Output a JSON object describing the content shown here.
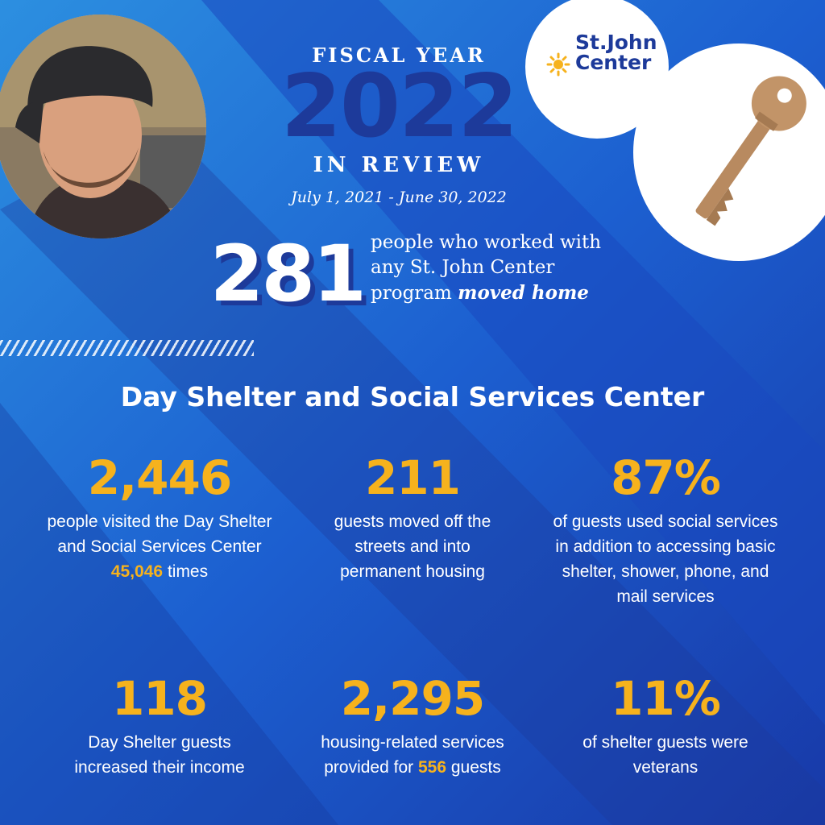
{
  "header": {
    "fiscal_year_label": "FISCAL YEAR",
    "year": "2022",
    "in_review": "IN REVIEW",
    "date_range": "July 1, 2021 - June 30, 2022"
  },
  "logo": {
    "line1": "St.John",
    "line2": "Center"
  },
  "highlight": {
    "number": "281",
    "text_line1": "people who worked with",
    "text_line2": "any St. John Center",
    "text_line3_plain": "program",
    "text_line3_emph": "moved home"
  },
  "section_title": "Day Shelter and Social Services Center",
  "stats": [
    {
      "number": "2,446",
      "desc_before": "people visited the Day Shelter and Social Services Center",
      "desc_highlight": "45,046",
      "desc_after": "times"
    },
    {
      "number": "211",
      "desc": "guests moved off the streets and into permanent housing"
    },
    {
      "number": "87%",
      "desc": "of guests used social services in addition to accessing basic shelter, shower, phone, and mail services"
    },
    {
      "number": "118",
      "desc": "Day Shelter guests increased their income"
    },
    {
      "number": "2,295",
      "desc_before": "housing-related services provided for",
      "desc_highlight": "556",
      "desc_after": "guests"
    },
    {
      "number": "11%",
      "desc": "of shelter guests were veterans"
    }
  ],
  "colors": {
    "background": "#1a4fc4",
    "navy": "#1d3a9a",
    "accent_gold": "#f6b21d",
    "white": "#ffffff"
  },
  "icons": [
    "person-photo",
    "key-icon",
    "sun-icon"
  ]
}
